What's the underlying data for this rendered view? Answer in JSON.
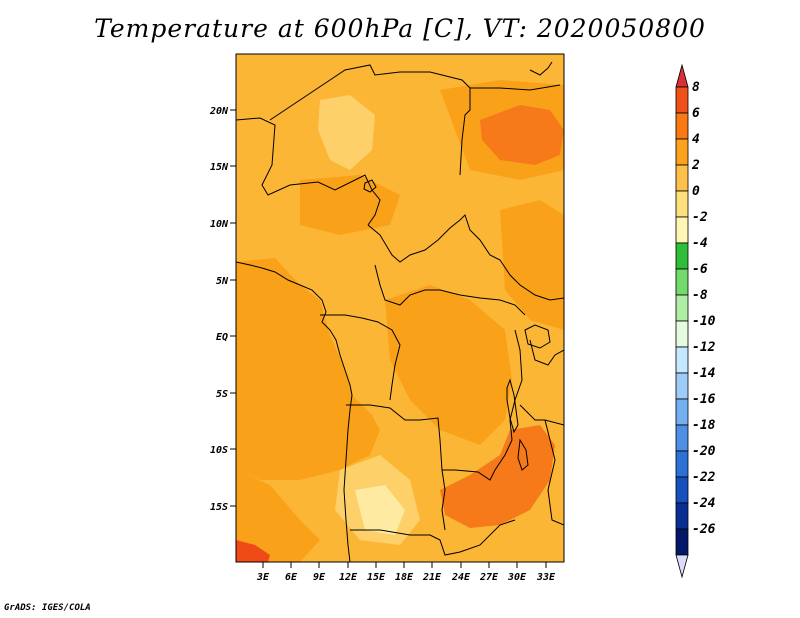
{
  "title": "Temperature at 600hPa [C], VT: 2020050800",
  "credit": "GrADS: IGES/COLA",
  "axes": {
    "lat_labels": [
      "20N",
      "15N",
      "10N",
      "5N",
      "EQ",
      "5S",
      "10S",
      "15S"
    ],
    "lon_labels": [
      "3E",
      "6E",
      "9E",
      "12E",
      "15E",
      "18E",
      "21E",
      "24E",
      "27E",
      "30E",
      "33E"
    ]
  },
  "colorbar": {
    "labels": [
      "8",
      "6",
      "4",
      "2",
      "0",
      "-2",
      "-4",
      "-6",
      "-8",
      "-10",
      "-12",
      "-14",
      "-16",
      "-18",
      "-20",
      "-22",
      "-24",
      "-26"
    ],
    "colors": [
      "#d8303a",
      "#f0501a",
      "#f97a14",
      "#fca21c",
      "#fdc04a",
      "#fde07c",
      "#fff5b4",
      "#2fbd3a",
      "#73da6c",
      "#b0eea6",
      "#e4fbe0",
      "#c6e8ff",
      "#9dccf9",
      "#74aff0",
      "#4f90e4",
      "#2d70d6",
      "#1550bd",
      "#0a2f92",
      "#04186a",
      "#dcdcf8"
    ]
  },
  "colors": {
    "base": "#fcb636",
    "warm": "#f9a118",
    "hot": "#f77a1a",
    "hottest": "#f04a18",
    "cool": "#fdd06a",
    "coolest": "#feeaa0"
  }
}
